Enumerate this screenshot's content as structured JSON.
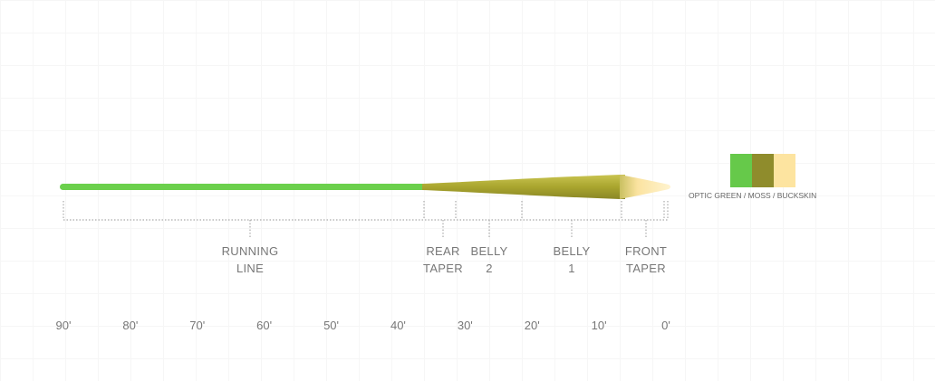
{
  "segments": [
    {
      "name": "running-line",
      "label_lines": [
        "RUNNING",
        "LINE"
      ]
    },
    {
      "name": "rear-taper",
      "label_lines": [
        "REAR",
        "TAPER"
      ]
    },
    {
      "name": "belly-2",
      "label_lines": [
        "BELLY",
        "2"
      ]
    },
    {
      "name": "belly-1",
      "label_lines": [
        "BELLY",
        "1"
      ]
    },
    {
      "name": "front-taper",
      "label_lines": [
        "FRONT",
        "TAPER"
      ]
    }
  ],
  "scale_ticks": [
    "90'",
    "80'",
    "70'",
    "60'",
    "50'",
    "40'",
    "30'",
    "20'",
    "10'",
    "0'"
  ],
  "colors": {
    "optic_green": "#66c94a",
    "moss": "#8f8c2c",
    "buckskin": "#fde4a0"
  },
  "legend": {
    "text": "OPTIC GREEN / MOSS / BUCKSKIN"
  }
}
